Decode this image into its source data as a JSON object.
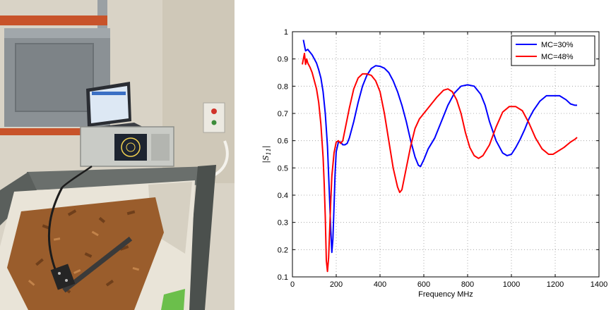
{
  "photo": {
    "colors": {
      "wall": "#d9d3c6",
      "shelf": "#c8532a",
      "bin": "#5a5f5c",
      "bag": "#e9e4d8",
      "chips": "#9a5d2c"
    }
  },
  "chart_data": {
    "type": "line",
    "title": "",
    "xlabel": "Frequency MHz",
    "ylabel": "|S11|",
    "ylabel_main": "|S",
    "ylabel_sub": "11",
    "ylabel_end": "|",
    "xlim": [
      0,
      1400
    ],
    "ylim": [
      0.1,
      1
    ],
    "xticks": [
      0,
      200,
      400,
      600,
      800,
      1000,
      1200,
      1400
    ],
    "yticks": [
      0.1,
      0.2,
      0.3,
      0.4,
      0.5,
      0.6,
      0.7,
      0.8,
      0.9,
      1
    ],
    "grid": true,
    "legend_position": "top-right",
    "series": [
      {
        "name": "MC=30%",
        "color": "#0000ff",
        "x": [
          50,
          55,
          60,
          70,
          80,
          90,
          100,
          110,
          120,
          130,
          140,
          150,
          160,
          170,
          175,
          180,
          185,
          190,
          195,
          200,
          210,
          220,
          230,
          240,
          250,
          260,
          280,
          300,
          320,
          340,
          360,
          380,
          400,
          420,
          440,
          460,
          480,
          500,
          520,
          540,
          560,
          575,
          585,
          600,
          620,
          650,
          680,
          710,
          740,
          770,
          800,
          830,
          860,
          880,
          900,
          930,
          960,
          980,
          1000,
          1020,
          1040,
          1060,
          1080,
          1100,
          1130,
          1160,
          1190,
          1220,
          1250,
          1270,
          1290,
          1300
        ],
        "y": [
          0.97,
          0.95,
          0.93,
          0.935,
          0.925,
          0.915,
          0.9,
          0.885,
          0.86,
          0.83,
          0.78,
          0.7,
          0.58,
          0.38,
          0.27,
          0.19,
          0.24,
          0.36,
          0.48,
          0.56,
          0.595,
          0.595,
          0.585,
          0.585,
          0.59,
          0.61,
          0.67,
          0.74,
          0.8,
          0.84,
          0.865,
          0.875,
          0.873,
          0.866,
          0.85,
          0.82,
          0.78,
          0.73,
          0.67,
          0.6,
          0.54,
          0.51,
          0.505,
          0.53,
          0.57,
          0.61,
          0.67,
          0.73,
          0.775,
          0.8,
          0.805,
          0.8,
          0.77,
          0.73,
          0.67,
          0.6,
          0.555,
          0.545,
          0.55,
          0.575,
          0.605,
          0.64,
          0.68,
          0.71,
          0.745,
          0.765,
          0.765,
          0.765,
          0.75,
          0.735,
          0.73,
          0.73
        ]
      },
      {
        "name": "MC=48%",
        "color": "#ff0000",
        "x": [
          45,
          50,
          55,
          60,
          65,
          70,
          80,
          90,
          100,
          110,
          120,
          130,
          140,
          145,
          150,
          155,
          160,
          165,
          170,
          175,
          180,
          190,
          200,
          210,
          220,
          230,
          240,
          260,
          280,
          300,
          320,
          340,
          360,
          380,
          400,
          420,
          440,
          460,
          480,
          490,
          500,
          510,
          520,
          540,
          560,
          580,
          600,
          630,
          660,
          690,
          710,
          730,
          750,
          770,
          790,
          810,
          830,
          850,
          870,
          900,
          930,
          960,
          990,
          1020,
          1050,
          1080,
          1110,
          1140,
          1170,
          1190,
          1210,
          1240,
          1270,
          1290,
          1300
        ],
        "y": [
          0.88,
          0.9,
          0.92,
          0.88,
          0.9,
          0.885,
          0.87,
          0.85,
          0.82,
          0.79,
          0.74,
          0.66,
          0.54,
          0.44,
          0.32,
          0.16,
          0.12,
          0.17,
          0.27,
          0.38,
          0.47,
          0.555,
          0.595,
          0.6,
          0.59,
          0.6,
          0.64,
          0.72,
          0.79,
          0.83,
          0.845,
          0.845,
          0.84,
          0.82,
          0.78,
          0.7,
          0.6,
          0.5,
          0.43,
          0.41,
          0.42,
          0.46,
          0.5,
          0.58,
          0.645,
          0.68,
          0.7,
          0.73,
          0.76,
          0.785,
          0.79,
          0.78,
          0.75,
          0.7,
          0.63,
          0.575,
          0.545,
          0.535,
          0.545,
          0.585,
          0.65,
          0.705,
          0.725,
          0.725,
          0.71,
          0.665,
          0.61,
          0.57,
          0.55,
          0.55,
          0.56,
          0.575,
          0.595,
          0.605,
          0.612
        ]
      }
    ]
  }
}
